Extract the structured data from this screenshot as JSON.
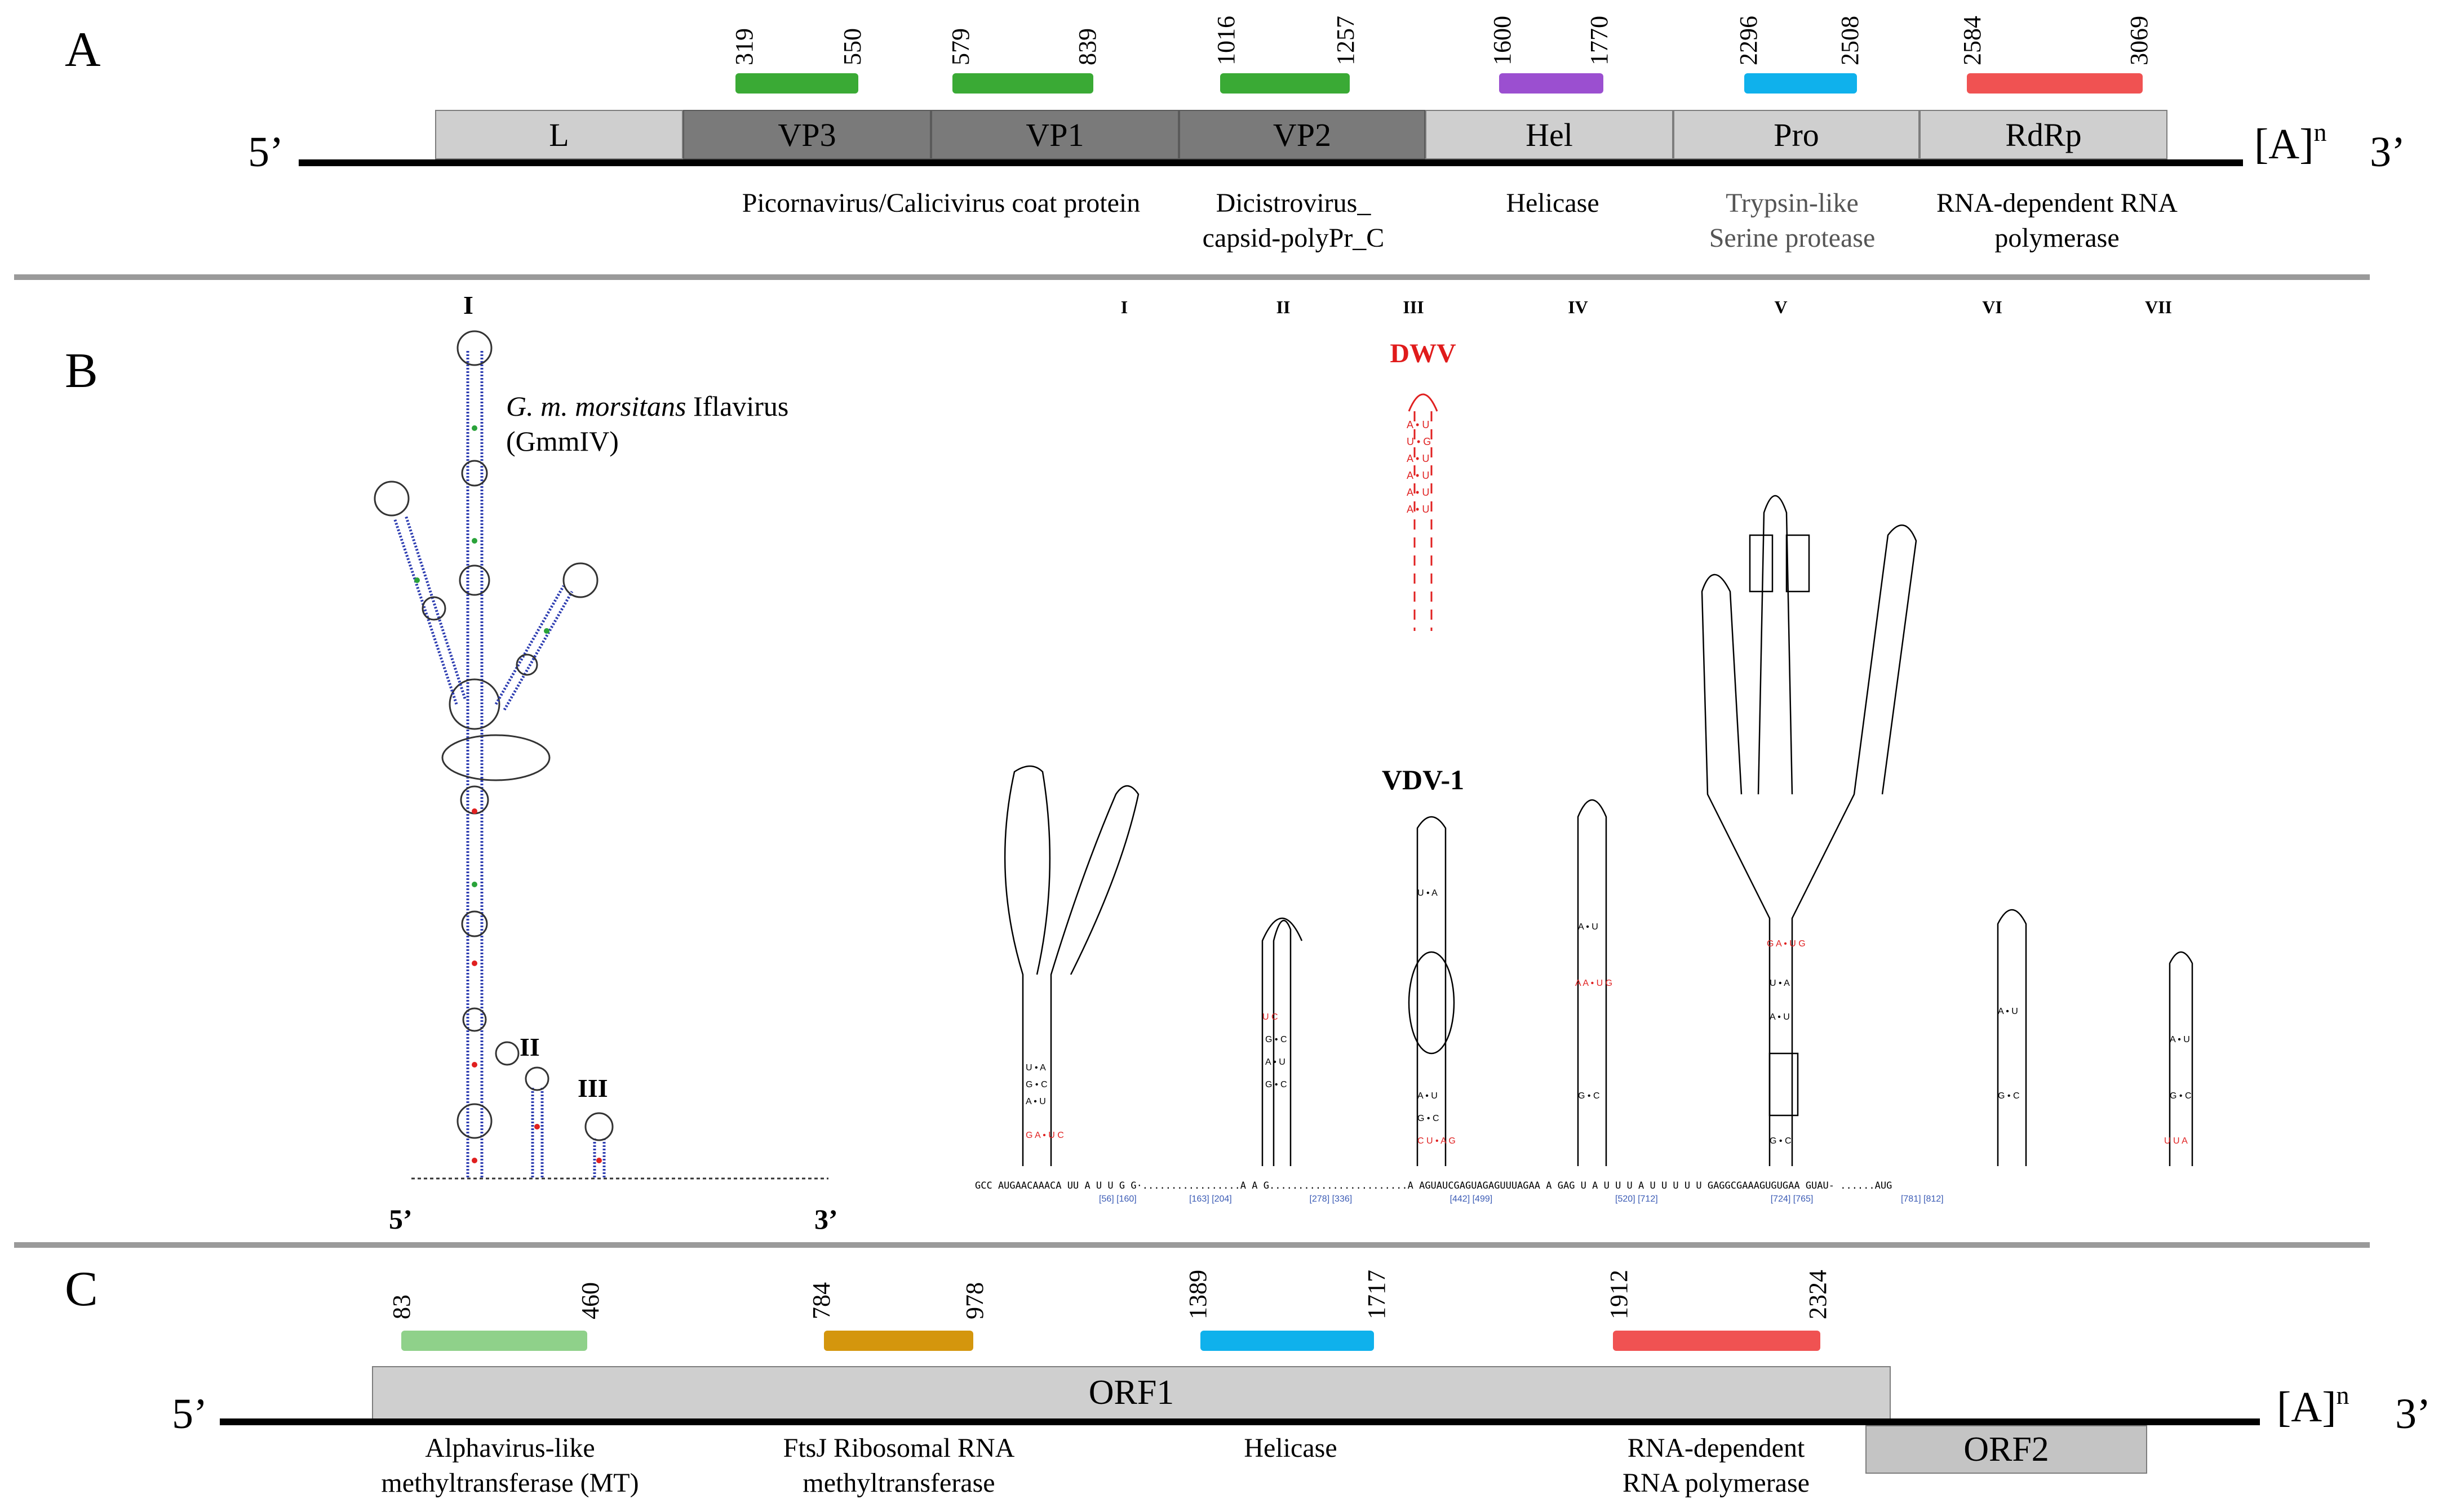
{
  "panelA": {
    "letter": "A",
    "end5": "5’",
    "end3": "3’",
    "polyA": "[A]",
    "polyA_sup": "n",
    "genes": [
      {
        "label": "L",
        "style": "light"
      },
      {
        "label": "VP3",
        "style": "dark"
      },
      {
        "label": "VP1",
        "style": "dark"
      },
      {
        "label": "VP2",
        "style": "dark"
      },
      {
        "label": "Hel",
        "style": "light"
      },
      {
        "label": "Pro",
        "style": "light"
      },
      {
        "label": "RdRp",
        "style": "light"
      }
    ],
    "domains": [
      {
        "start": "319",
        "end": "550",
        "color": "#3aaa35"
      },
      {
        "start": "579",
        "end": "839",
        "color": "#3aaa35"
      },
      {
        "start": "1016",
        "end": "1257",
        "color": "#3aaa35"
      },
      {
        "start": "1600",
        "end": "1770",
        "color": "#9b4fd0"
      },
      {
        "start": "2296",
        "end": "2508",
        "color": "#0fb1ec"
      },
      {
        "start": "2584",
        "end": "3069",
        "color": "#f05252"
      }
    ],
    "annotations": [
      {
        "line1": "Picornavirus/Calicivirus  coat protein",
        "line2": ""
      },
      {
        "line1": "Dicistrovirus_",
        "line2": "capsid-polyPr_C"
      },
      {
        "line1": "Helicase",
        "line2": ""
      },
      {
        "line1": "Trypsin-like",
        "line2": "Serine protease"
      },
      {
        "line1": "RNA-dependent RNA",
        "line2": "polymerase"
      }
    ]
  },
  "panelB": {
    "letter": "B",
    "species_italic": "G. m. morsitans",
    "species_rest": " Iflavirus",
    "species_abbrev": "(GmmIV)",
    "structure_labels": [
      "I",
      "II",
      "III"
    ],
    "end5": "5’",
    "end3": "3’",
    "roman_domains": [
      "I",
      "II",
      "III",
      "IV",
      "V",
      "VI",
      "VII"
    ],
    "dwv_label": "DWV",
    "vdv_label": "VDV-1",
    "bottom_sequence": "GCC AUGAACAAACA UU   A      U     U   G    G·.................A    A   G........................A     AGUAUCGAGUAGAGUUUAGAA A    GAG U A U U U A U U U U   U GAGGCGAAAGUGUGAA     GUAU- ......AUG",
    "positions": [
      "[56]",
      "[160]",
      "[163]",
      "[204]",
      "[278]",
      "[336]",
      "[442]",
      "[499]",
      "[520]",
      "[712]",
      "[724]",
      "[765]",
      "[781]",
      "[812]"
    ]
  },
  "panelC": {
    "letter": "C",
    "end5": "5’",
    "end3": "3’",
    "polyA": "[A]",
    "polyA_sup": "n",
    "orf1": "ORF1",
    "orf2": "ORF2",
    "domains": [
      {
        "start": "83",
        "end": "460",
        "color": "#8fd18a"
      },
      {
        "start": "784",
        "end": "978",
        "color": "#d4960d"
      },
      {
        "start": "1389",
        "end": "1717",
        "color": "#0fb1ec"
      },
      {
        "start": "1912",
        "end": "2324",
        "color": "#f05252"
      }
    ],
    "annotations": [
      {
        "line1": "Alphavirus-like",
        "line2": "methyltransferase (MT)"
      },
      {
        "line1": "FtsJ Ribosomal RNA",
        "line2": "methyltransferase"
      },
      {
        "line1": "Helicase",
        "line2": ""
      },
      {
        "line1": "RNA-dependent",
        "line2": "RNA polymerase"
      }
    ]
  }
}
